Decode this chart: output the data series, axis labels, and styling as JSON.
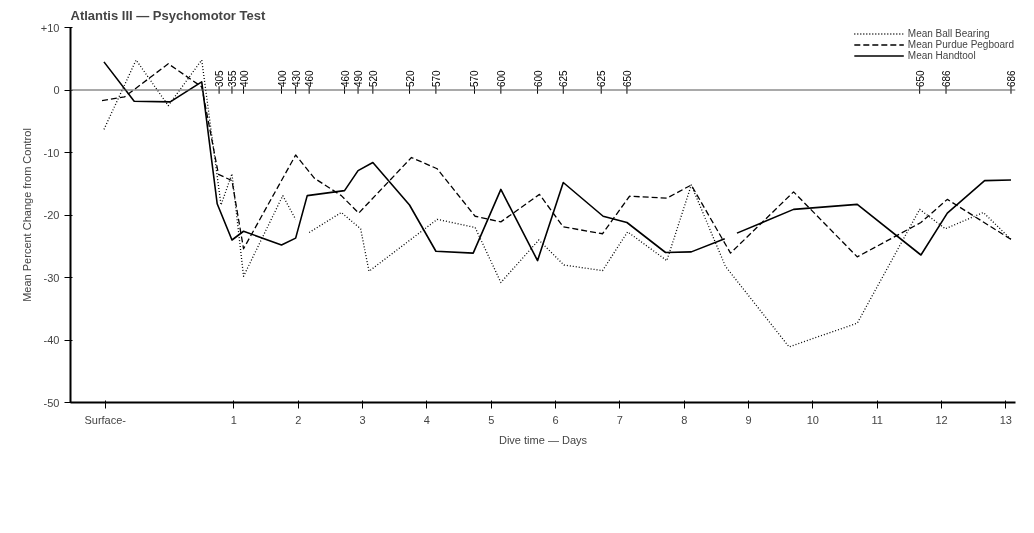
{
  "chart_data": {
    "type": "line",
    "title": "Atlantis III — Psychomotor Test",
    "xlabel": "Dive time — Days",
    "ylabel": "Mean Percent Change from Control",
    "xlim": [
      -1.54,
      13.15
    ],
    "ylim": [
      -50,
      10
    ],
    "xticks": [
      {
        "value": -1,
        "label": "Surface-"
      },
      1,
      2,
      3,
      4,
      5,
      6,
      7,
      8,
      9,
      10,
      11,
      12,
      13
    ],
    "yticks": [
      {
        "value": 10,
        "label": "+10"
      },
      0,
      -10,
      -20,
      -30,
      -40,
      -50
    ],
    "grid": false,
    "legend": "top right",
    "marker": "none",
    "ref_lines": [
      {
        "axis": "y",
        "value": 0
      }
    ],
    "series": [
      {
        "name": "Mean Ball Bearing",
        "color": "#000000",
        "line_style": "dotted",
        "x": [
          -1.02,
          -0.52,
          -0.02,
          0.5,
          0.8,
          0.97,
          1.15,
          1.76,
          1.96,
          2.07,
          2.17,
          2.67,
          2.97,
          3.1,
          4.16,
          4.75,
          5.15,
          5.74,
          6.13,
          6.73,
          7.12,
          7.73,
          8.11,
          8.64,
          9.63,
          10.69,
          11.66,
          12.06,
          12.65,
          13.08
        ],
        "values": [
          -6.3,
          4.8,
          -2.5,
          4.8,
          -18.4,
          -13.4,
          -29.8,
          -16.9,
          -20.7,
          null,
          -22.8,
          -19.6,
          -22.2,
          -29,
          -20.7,
          -22,
          -30.8,
          -24,
          -28,
          -28.9,
          -22.7,
          -27.3,
          -15.2,
          -28.2,
          -41.1,
          -37.3,
          -19.1,
          -22.2,
          -19.6,
          -23.9
        ]
      },
      {
        "name": "Mean Purdue Pegboard",
        "color": "#000000",
        "line_style": "dashed",
        "x": [
          -1.05,
          -0.7,
          -0.02,
          0.5,
          0.76,
          0.97,
          1.15,
          1.96,
          2.25,
          2.67,
          2.94,
          3.76,
          4.16,
          4.75,
          5.15,
          5.75,
          6.12,
          6.73,
          7.15,
          7.73,
          8.11,
          8.72,
          9.7,
          10.69,
          11.68,
          12.09,
          13.08
        ],
        "values": [
          -1.7,
          -1.1,
          4.2,
          0.5,
          -13.5,
          -14.5,
          -25.4,
          -10.4,
          -14.1,
          -16.9,
          -19.7,
          -10.8,
          -12.6,
          -20.2,
          -21.1,
          -16.7,
          -21.9,
          -23,
          -17,
          -17.3,
          -15.2,
          -26.1,
          -16.3,
          -26.7,
          -21.2,
          -17.5,
          -23.9
        ]
      },
      {
        "name": "Mean Handtool",
        "color": "#000000",
        "line_style": "solid",
        "x": [
          -1.02,
          -0.55,
          0.01,
          0.5,
          0.74,
          0.97,
          1.15,
          1.74,
          1.96,
          2.14,
          2.72,
          2.93,
          3.16,
          3.73,
          4.14,
          4.72,
          5.15,
          5.72,
          6.12,
          6.74,
          7.11,
          7.71,
          8.11,
          8.63,
          8.72,
          8.82,
          9.7,
          10.69,
          11.68,
          12.09,
          12.67,
          13.08
        ],
        "values": [
          4.5,
          -1.8,
          -1.9,
          1.3,
          -18.2,
          -24,
          -22.6,
          -24.8,
          -23.7,
          -16.9,
          -16.1,
          -12.9,
          -11.6,
          -18.4,
          -25.8,
          -26.1,
          -15.9,
          -27.3,
          -14.8,
          -20.2,
          -21.2,
          -26,
          -25.9,
          -23.8,
          null,
          -22.9,
          -19.1,
          -18.3,
          -26.4,
          -19.7,
          -14.5,
          -14.4
        ]
      }
    ],
    "annotations": [
      {
        "text": "305",
        "x": 0.77,
        "y": 0
      },
      {
        "text": "355",
        "x": 0.97,
        "y": 0
      },
      {
        "text": "400",
        "x": 1.15,
        "y": 0
      },
      {
        "text": "400",
        "x": 1.74,
        "y": 0
      },
      {
        "text": "430",
        "x": 1.96,
        "y": 0
      },
      {
        "text": "460",
        "x": 2.17,
        "y": 0
      },
      {
        "text": "460",
        "x": 2.72,
        "y": 0
      },
      {
        "text": "490",
        "x": 2.93,
        "y": 0
      },
      {
        "text": "520",
        "x": 3.16,
        "y": 0
      },
      {
        "text": "520",
        "x": 3.73,
        "y": 0
      },
      {
        "text": "570",
        "x": 4.14,
        "y": 0
      },
      {
        "text": "570",
        "x": 4.74,
        "y": 0
      },
      {
        "text": "600",
        "x": 5.15,
        "y": 0
      },
      {
        "text": "600",
        "x": 5.72,
        "y": 0
      },
      {
        "text": "625",
        "x": 6.12,
        "y": 0
      },
      {
        "text": "625",
        "x": 6.71,
        "y": 0
      },
      {
        "text": "650",
        "x": 7.11,
        "y": 0
      },
      {
        "text": "650",
        "x": 11.66,
        "y": 0
      },
      {
        "text": "686",
        "x": 12.07,
        "y": 0
      },
      {
        "text": "686",
        "x": 13.08,
        "y": 0
      }
    ]
  }
}
